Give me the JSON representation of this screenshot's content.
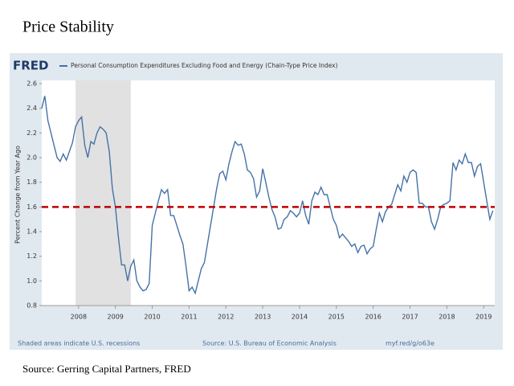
{
  "title": "Price Stability",
  "source": "Source: Gerring Capital Partners, FRED",
  "chart_data": {
    "type": "line",
    "brand": "FRED",
    "ylabel": "Percent Change from Year Ago",
    "note": "Shaded areas indicate U.S. recessions",
    "source": "Source: U.S. Bureau of Economic Analysis",
    "link": "myf.red/g/o63e",
    "xlim": [
      2007,
      2019.3
    ],
    "ylim": [
      0.8,
      2.6
    ],
    "xticks": [
      2008,
      2009,
      2010,
      2011,
      2012,
      2013,
      2014,
      2015,
      2016,
      2017,
      2018,
      2019
    ],
    "yticks": [
      0.8,
      {
        "value": 1,
        "label": "1.0"
      },
      1.2,
      1.4,
      1.6,
      1.8,
      {
        "value": 2,
        "label": "2.0"
      },
      2.2,
      2.4,
      2.6
    ],
    "grid": false,
    "recessions": [
      [
        2007.917,
        2009.417
      ]
    ],
    "recession_color": "#e1e1e1",
    "reference_line": {
      "value": 1.6,
      "color": "#c00000"
    },
    "x": [
      2007.0,
      2007.083,
      2007.167,
      2007.25,
      2007.333,
      2007.417,
      2007.5,
      2007.583,
      2007.667,
      2007.75,
      2007.833,
      2007.917,
      2008.0,
      2008.083,
      2008.167,
      2008.25,
      2008.333,
      2008.417,
      2008.5,
      2008.583,
      2008.667,
      2008.75,
      2008.833,
      2008.917,
      2009.0,
      2009.083,
      2009.167,
      2009.25,
      2009.333,
      2009.417,
      2009.5,
      2009.583,
      2009.667,
      2009.75,
      2009.833,
      2009.917,
      2010.0,
      2010.083,
      2010.167,
      2010.25,
      2010.333,
      2010.417,
      2010.5,
      2010.583,
      2010.667,
      2010.75,
      2010.833,
      2010.917,
      2011.0,
      2011.083,
      2011.167,
      2011.25,
      2011.333,
      2011.417,
      2011.5,
      2011.583,
      2011.667,
      2011.75,
      2011.833,
      2011.917,
      2012.0,
      2012.083,
      2012.167,
      2012.25,
      2012.333,
      2012.417,
      2012.5,
      2012.583,
      2012.667,
      2012.75,
      2012.833,
      2012.917,
      2013.0,
      2013.083,
      2013.167,
      2013.25,
      2013.333,
      2013.417,
      2013.5,
      2013.583,
      2013.667,
      2013.75,
      2013.833,
      2013.917,
      2014.0,
      2014.083,
      2014.167,
      2014.25,
      2014.333,
      2014.417,
      2014.5,
      2014.583,
      2014.667,
      2014.75,
      2014.833,
      2014.917,
      2015.0,
      2015.083,
      2015.167,
      2015.25,
      2015.333,
      2015.417,
      2015.5,
      2015.583,
      2015.667,
      2015.75,
      2015.833,
      2015.917,
      2016.0,
      2016.083,
      2016.167,
      2016.25,
      2016.333,
      2016.417,
      2016.5,
      2016.583,
      2016.667,
      2016.75,
      2016.833,
      2016.917,
      2017.0,
      2017.083,
      2017.167,
      2017.25,
      2017.333,
      2017.417,
      2017.5,
      2017.583,
      2017.667,
      2017.75,
      2017.833,
      2017.917,
      2018.0,
      2018.083,
      2018.167,
      2018.25,
      2018.333,
      2018.417,
      2018.5,
      2018.583,
      2018.667,
      2018.75,
      2018.833,
      2018.917,
      2019.0,
      2019.083,
      2019.167,
      2019.25
    ],
    "series": [
      {
        "name": "Personal Consumption Expenditures Excluding Food and Energy (Chain-Type Price Index)",
        "color": "#4572a7",
        "values": [
          2.4,
          2.5,
          2.3,
          2.2,
          2.1,
          2.0,
          1.97,
          2.03,
          1.98,
          2.05,
          2.12,
          2.25,
          2.3,
          2.33,
          2.1,
          2.0,
          2.13,
          2.11,
          2.2,
          2.25,
          2.23,
          2.2,
          2.05,
          1.75,
          1.6,
          1.35,
          1.13,
          1.13,
          1.0,
          1.12,
          1.17,
          1.0,
          0.95,
          0.92,
          0.93,
          0.98,
          1.45,
          1.55,
          1.65,
          1.74,
          1.71,
          1.74,
          1.53,
          1.53,
          1.45,
          1.37,
          1.3,
          1.12,
          0.92,
          0.95,
          0.9,
          1.0,
          1.1,
          1.15,
          1.3,
          1.45,
          1.6,
          1.75,
          1.87,
          1.89,
          1.82,
          1.95,
          2.05,
          2.13,
          2.1,
          2.11,
          2.03,
          1.9,
          1.88,
          1.83,
          1.68,
          1.73,
          1.91,
          1.8,
          1.68,
          1.58,
          1.52,
          1.42,
          1.43,
          1.5,
          1.52,
          1.57,
          1.55,
          1.52,
          1.55,
          1.65,
          1.53,
          1.46,
          1.65,
          1.72,
          1.7,
          1.76,
          1.7,
          1.7,
          1.6,
          1.5,
          1.45,
          1.35,
          1.38,
          1.35,
          1.32,
          1.28,
          1.3,
          1.23,
          1.28,
          1.29,
          1.22,
          1.26,
          1.28,
          1.42,
          1.55,
          1.48,
          1.56,
          1.6,
          1.62,
          1.7,
          1.78,
          1.73,
          1.85,
          1.8,
          1.88,
          1.9,
          1.88,
          1.63,
          1.63,
          1.6,
          1.6,
          1.48,
          1.42,
          1.5,
          1.6,
          1.62,
          1.63,
          1.65,
          1.96,
          1.9,
          1.98,
          1.95,
          2.03,
          1.96,
          1.96,
          1.85,
          1.93,
          1.95,
          1.8,
          1.65,
          1.5,
          1.57
        ]
      }
    ]
  }
}
